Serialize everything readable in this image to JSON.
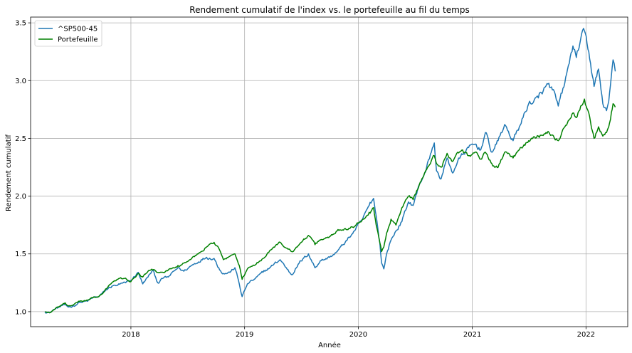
{
  "chart_data": {
    "type": "line",
    "title": "Rendement cumulatif de l'index vs. le portefeuille au fil du temps",
    "xlabel": "Année",
    "ylabel": "Rendement cumulatif",
    "x_tick_labels": [
      "2018",
      "2019",
      "2020",
      "2021",
      "2022"
    ],
    "y_tick_labels": [
      "1.0",
      "1.5",
      "2.0",
      "2.5",
      "3.0",
      "3.5"
    ],
    "ylim": [
      0.87,
      3.55
    ],
    "xlim": [
      "2017-02-13",
      "2022-05-15"
    ],
    "grid": true,
    "legend_position": "top-left",
    "x_unit": "date",
    "series": [
      {
        "name": "^SP500-45",
        "color": "#1f77b4",
        "points": [
          [
            "2017-03-31",
            1.0
          ],
          [
            "2017-04-15",
            0.99
          ],
          [
            "2017-05-01",
            1.02
          ],
          [
            "2017-06-01",
            1.06
          ],
          [
            "2017-06-15",
            1.04
          ],
          [
            "2017-07-01",
            1.05
          ],
          [
            "2017-07-20",
            1.08
          ],
          [
            "2017-08-15",
            1.09
          ],
          [
            "2017-09-01",
            1.12
          ],
          [
            "2017-09-20",
            1.13
          ],
          [
            "2017-10-15",
            1.19
          ],
          [
            "2017-11-01",
            1.22
          ],
          [
            "2017-11-20",
            1.23
          ],
          [
            "2017-12-15",
            1.25
          ],
          [
            "2018-01-01",
            1.27
          ],
          [
            "2018-01-25",
            1.34
          ],
          [
            "2018-02-08",
            1.24
          ],
          [
            "2018-02-25",
            1.3
          ],
          [
            "2018-03-12",
            1.36
          ],
          [
            "2018-03-28",
            1.25
          ],
          [
            "2018-04-15",
            1.29
          ],
          [
            "2018-05-01",
            1.3
          ],
          [
            "2018-06-01",
            1.38
          ],
          [
            "2018-06-20",
            1.35
          ],
          [
            "2018-07-15",
            1.4
          ],
          [
            "2018-08-15",
            1.45
          ],
          [
            "2018-09-01",
            1.47
          ],
          [
            "2018-09-25",
            1.46
          ],
          [
            "2018-10-10",
            1.38
          ],
          [
            "2018-10-25",
            1.33
          ],
          [
            "2018-11-15",
            1.34
          ],
          [
            "2018-12-01",
            1.38
          ],
          [
            "2018-12-15",
            1.24
          ],
          [
            "2018-12-24",
            1.13
          ],
          [
            "2019-01-10",
            1.24
          ],
          [
            "2019-02-01",
            1.28
          ],
          [
            "2019-03-01",
            1.34
          ],
          [
            "2019-04-01",
            1.4
          ],
          [
            "2019-04-25",
            1.45
          ],
          [
            "2019-05-15",
            1.38
          ],
          [
            "2019-06-01",
            1.32
          ],
          [
            "2019-06-25",
            1.42
          ],
          [
            "2019-07-25",
            1.5
          ],
          [
            "2019-08-15",
            1.38
          ],
          [
            "2019-09-01",
            1.44
          ],
          [
            "2019-10-01",
            1.47
          ],
          [
            "2019-10-25",
            1.52
          ],
          [
            "2019-11-20",
            1.6
          ],
          [
            "2019-12-20",
            1.7
          ],
          [
            "2020-01-15",
            1.8
          ],
          [
            "2020-02-05",
            1.92
          ],
          [
            "2020-02-19",
            1.98
          ],
          [
            "2020-03-01",
            1.78
          ],
          [
            "2020-03-10",
            1.6
          ],
          [
            "2020-03-16",
            1.42
          ],
          [
            "2020-03-23",
            1.37
          ],
          [
            "2020-04-01",
            1.5
          ],
          [
            "2020-04-15",
            1.62
          ],
          [
            "2020-05-01",
            1.7
          ],
          [
            "2020-05-20",
            1.78
          ],
          [
            "2020-06-10",
            1.95
          ],
          [
            "2020-06-25",
            1.92
          ],
          [
            "2020-07-15",
            2.1
          ],
          [
            "2020-08-01",
            2.2
          ],
          [
            "2020-09-01",
            2.46
          ],
          [
            "2020-09-08",
            2.22
          ],
          [
            "2020-09-23",
            2.15
          ],
          [
            "2020-10-12",
            2.33
          ],
          [
            "2020-10-30",
            2.2
          ],
          [
            "2020-11-15",
            2.3
          ],
          [
            "2020-12-01",
            2.36
          ],
          [
            "2020-12-20",
            2.42
          ],
          [
            "2021-01-10",
            2.45
          ],
          [
            "2021-01-28",
            2.4
          ],
          [
            "2021-02-12",
            2.55
          ],
          [
            "2021-03-05",
            2.38
          ],
          [
            "2021-03-25",
            2.48
          ],
          [
            "2021-04-15",
            2.62
          ],
          [
            "2021-05-12",
            2.48
          ],
          [
            "2021-06-01",
            2.6
          ],
          [
            "2021-07-01",
            2.8
          ],
          [
            "2021-08-01",
            2.85
          ],
          [
            "2021-09-01",
            2.97
          ],
          [
            "2021-09-15",
            2.92
          ],
          [
            "2021-10-04",
            2.78
          ],
          [
            "2021-10-25",
            2.98
          ],
          [
            "2021-11-20",
            3.3
          ],
          [
            "2021-12-01",
            3.2
          ],
          [
            "2021-12-15",
            3.36
          ],
          [
            "2021-12-27",
            3.43
          ],
          [
            "2022-01-10",
            3.25
          ],
          [
            "2022-01-27",
            2.95
          ],
          [
            "2022-02-10",
            3.1
          ],
          [
            "2022-02-24",
            2.8
          ],
          [
            "2022-03-08",
            2.74
          ],
          [
            "2022-03-15",
            2.82
          ],
          [
            "2022-03-29",
            3.18
          ],
          [
            "2022-04-05",
            3.08
          ]
        ]
      },
      {
        "name": "Portefeuille",
        "color": "#008000",
        "points": [
          [
            "2017-03-31",
            1.0
          ],
          [
            "2017-04-15",
            0.99
          ],
          [
            "2017-05-01",
            1.02
          ],
          [
            "2017-06-01",
            1.07
          ],
          [
            "2017-06-15",
            1.05
          ],
          [
            "2017-07-01",
            1.06
          ],
          [
            "2017-07-20",
            1.09
          ],
          [
            "2017-08-15",
            1.1
          ],
          [
            "2017-09-01",
            1.12
          ],
          [
            "2017-09-20",
            1.13
          ],
          [
            "2017-10-15",
            1.2
          ],
          [
            "2017-11-01",
            1.25
          ],
          [
            "2017-11-20",
            1.28
          ],
          [
            "2017-12-15",
            1.29
          ],
          [
            "2018-01-01",
            1.26
          ],
          [
            "2018-01-25",
            1.33
          ],
          [
            "2018-02-08",
            1.3
          ],
          [
            "2018-02-25",
            1.35
          ],
          [
            "2018-03-12",
            1.36
          ],
          [
            "2018-03-28",
            1.34
          ],
          [
            "2018-04-15",
            1.34
          ],
          [
            "2018-05-01",
            1.36
          ],
          [
            "2018-06-01",
            1.4
          ],
          [
            "2018-06-20",
            1.42
          ],
          [
            "2018-07-15",
            1.46
          ],
          [
            "2018-08-15",
            1.52
          ],
          [
            "2018-09-01",
            1.56
          ],
          [
            "2018-09-25",
            1.6
          ],
          [
            "2018-10-10",
            1.55
          ],
          [
            "2018-10-25",
            1.45
          ],
          [
            "2018-11-15",
            1.48
          ],
          [
            "2018-12-01",
            1.5
          ],
          [
            "2018-12-15",
            1.4
          ],
          [
            "2018-12-24",
            1.28
          ],
          [
            "2019-01-10",
            1.37
          ],
          [
            "2019-02-01",
            1.4
          ],
          [
            "2019-03-01",
            1.46
          ],
          [
            "2019-04-01",
            1.55
          ],
          [
            "2019-04-25",
            1.6
          ],
          [
            "2019-05-15",
            1.55
          ],
          [
            "2019-06-01",
            1.52
          ],
          [
            "2019-06-25",
            1.58
          ],
          [
            "2019-07-25",
            1.66
          ],
          [
            "2019-08-15",
            1.58
          ],
          [
            "2019-09-01",
            1.62
          ],
          [
            "2019-10-01",
            1.65
          ],
          [
            "2019-10-25",
            1.7
          ],
          [
            "2019-11-20",
            1.72
          ],
          [
            "2019-12-20",
            1.74
          ],
          [
            "2020-01-15",
            1.8
          ],
          [
            "2020-02-05",
            1.86
          ],
          [
            "2020-02-19",
            1.9
          ],
          [
            "2020-03-01",
            1.72
          ],
          [
            "2020-03-10",
            1.6
          ],
          [
            "2020-03-16",
            1.52
          ],
          [
            "2020-03-23",
            1.56
          ],
          [
            "2020-04-01",
            1.68
          ],
          [
            "2020-04-15",
            1.8
          ],
          [
            "2020-05-01",
            1.75
          ],
          [
            "2020-05-20",
            1.9
          ],
          [
            "2020-06-10",
            2.0
          ],
          [
            "2020-06-25",
            1.97
          ],
          [
            "2020-07-15",
            2.1
          ],
          [
            "2020-08-01",
            2.2
          ],
          [
            "2020-09-01",
            2.35
          ],
          [
            "2020-09-08",
            2.28
          ],
          [
            "2020-09-23",
            2.25
          ],
          [
            "2020-10-12",
            2.37
          ],
          [
            "2020-10-30",
            2.3
          ],
          [
            "2020-11-15",
            2.38
          ],
          [
            "2020-12-01",
            2.4
          ],
          [
            "2020-12-20",
            2.35
          ],
          [
            "2021-01-10",
            2.38
          ],
          [
            "2021-01-28",
            2.32
          ],
          [
            "2021-02-12",
            2.38
          ],
          [
            "2021-03-05",
            2.28
          ],
          [
            "2021-03-25",
            2.25
          ],
          [
            "2021-04-15",
            2.38
          ],
          [
            "2021-05-12",
            2.33
          ],
          [
            "2021-06-01",
            2.4
          ],
          [
            "2021-07-01",
            2.48
          ],
          [
            "2021-08-01",
            2.52
          ],
          [
            "2021-09-01",
            2.56
          ],
          [
            "2021-09-15",
            2.53
          ],
          [
            "2021-10-04",
            2.48
          ],
          [
            "2021-10-25",
            2.6
          ],
          [
            "2021-11-20",
            2.72
          ],
          [
            "2021-12-01",
            2.68
          ],
          [
            "2021-12-15",
            2.78
          ],
          [
            "2021-12-27",
            2.84
          ],
          [
            "2022-01-10",
            2.72
          ],
          [
            "2022-01-27",
            2.5
          ],
          [
            "2022-02-10",
            2.6
          ],
          [
            "2022-02-24",
            2.52
          ],
          [
            "2022-03-08",
            2.55
          ],
          [
            "2022-03-15",
            2.6
          ],
          [
            "2022-03-29",
            2.8
          ],
          [
            "2022-04-05",
            2.77
          ]
        ]
      }
    ]
  }
}
